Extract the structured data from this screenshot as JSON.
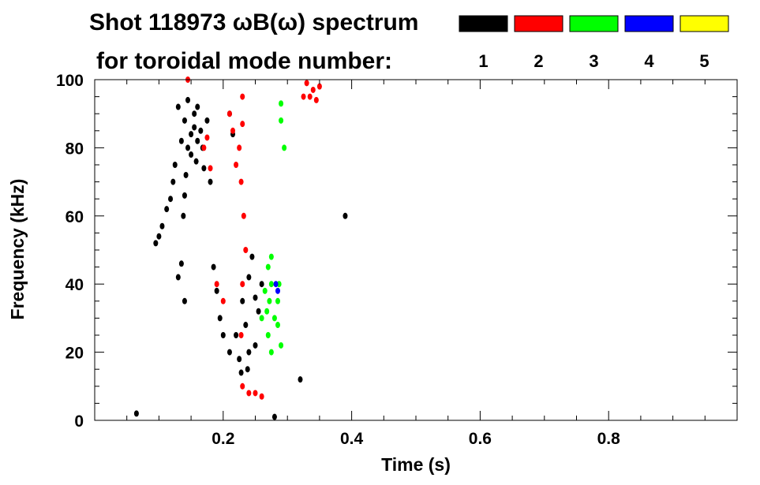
{
  "title": {
    "line1": "Shot 118973 ωB(ω) spectrum",
    "line2": "for toroidal mode number:"
  },
  "legend": [
    {
      "label": "1",
      "color": "#000000"
    },
    {
      "label": "2",
      "color": "#ff0000"
    },
    {
      "label": "3",
      "color": "#00ff00"
    },
    {
      "label": "4",
      "color": "#0000ff"
    },
    {
      "label": "5",
      "color": "#ffff00"
    }
  ],
  "chart_data": {
    "type": "scatter",
    "title": "Shot 118973 ωB(ω) spectrum",
    "xlabel": "Time (s)",
    "ylabel": "Frequency (kHz)",
    "xlim": [
      0.0,
      1.0
    ],
    "ylim": [
      0,
      100
    ],
    "x_ticks": [
      0.2,
      0.4,
      0.6,
      0.8
    ],
    "x_tick_labels": [
      "0.2",
      "0.4",
      "0.6",
      "0.8"
    ],
    "y_ticks": [
      0,
      20,
      40,
      60,
      80,
      100
    ],
    "y_tick_labels": [
      "0",
      "20",
      "40",
      "60",
      "80",
      "100"
    ],
    "grid": false,
    "legend_position": "top-right",
    "series": [
      {
        "name": "1",
        "color": "#000000",
        "points": [
          [
            0.155,
            86
          ],
          [
            0.15,
            84
          ],
          [
            0.16,
            82
          ],
          [
            0.145,
            80
          ],
          [
            0.155,
            90
          ],
          [
            0.165,
            85
          ],
          [
            0.14,
            88
          ],
          [
            0.15,
            78
          ],
          [
            0.16,
            92
          ],
          [
            0.135,
            82
          ],
          [
            0.145,
            94
          ],
          [
            0.158,
            76
          ],
          [
            0.168,
            80
          ],
          [
            0.13,
            92
          ],
          [
            0.125,
            75
          ],
          [
            0.122,
            70
          ],
          [
            0.118,
            65
          ],
          [
            0.112,
            62
          ],
          [
            0.105,
            57
          ],
          [
            0.1,
            54
          ],
          [
            0.095,
            52
          ],
          [
            0.175,
            88
          ],
          [
            0.17,
            74
          ],
          [
            0.142,
            72
          ],
          [
            0.14,
            66
          ],
          [
            0.138,
            60
          ],
          [
            0.18,
            70
          ],
          [
            0.185,
            45
          ],
          [
            0.19,
            38
          ],
          [
            0.195,
            30
          ],
          [
            0.2,
            25
          ],
          [
            0.21,
            20
          ],
          [
            0.22,
            25
          ],
          [
            0.225,
            18
          ],
          [
            0.23,
            35
          ],
          [
            0.235,
            28
          ],
          [
            0.24,
            42
          ],
          [
            0.24,
            20
          ],
          [
            0.245,
            48
          ],
          [
            0.25,
            36
          ],
          [
            0.25,
            22
          ],
          [
            0.255,
            32
          ],
          [
            0.26,
            40
          ],
          [
            0.238,
            15
          ],
          [
            0.228,
            14
          ],
          [
            0.13,
            42
          ],
          [
            0.135,
            46
          ],
          [
            0.14,
            35
          ],
          [
            0.065,
            2
          ],
          [
            0.28,
            1
          ],
          [
            0.32,
            12
          ],
          [
            0.39,
            60
          ],
          [
            0.21,
            90
          ],
          [
            0.215,
            84
          ]
        ]
      },
      {
        "name": "2",
        "color": "#ff0000",
        "points": [
          [
            0.145,
            100
          ],
          [
            0.175,
            83
          ],
          [
            0.17,
            80
          ],
          [
            0.18,
            74
          ],
          [
            0.23,
            95
          ],
          [
            0.23,
            87
          ],
          [
            0.225,
            80
          ],
          [
            0.228,
            70
          ],
          [
            0.232,
            60
          ],
          [
            0.235,
            50
          ],
          [
            0.23,
            40
          ],
          [
            0.21,
            90
          ],
          [
            0.215,
            85
          ],
          [
            0.22,
            75
          ],
          [
            0.228,
            25
          ],
          [
            0.23,
            10
          ],
          [
            0.24,
            8
          ],
          [
            0.25,
            8
          ],
          [
            0.26,
            7
          ],
          [
            0.33,
            99
          ],
          [
            0.335,
            95
          ],
          [
            0.34,
            97
          ],
          [
            0.345,
            94
          ],
          [
            0.35,
            98
          ],
          [
            0.325,
            95
          ],
          [
            0.2,
            35
          ],
          [
            0.19,
            40
          ]
        ]
      },
      {
        "name": "3",
        "color": "#00ff00",
        "points": [
          [
            0.27,
            45
          ],
          [
            0.275,
            40
          ],
          [
            0.272,
            35
          ],
          [
            0.28,
            30
          ],
          [
            0.27,
            25
          ],
          [
            0.265,
            38
          ],
          [
            0.285,
            28
          ],
          [
            0.285,
            35
          ],
          [
            0.275,
            20
          ],
          [
            0.29,
            22
          ],
          [
            0.268,
            32
          ],
          [
            0.26,
            30
          ],
          [
            0.275,
            48
          ],
          [
            0.287,
            40
          ],
          [
            0.29,
            93
          ],
          [
            0.29,
            88
          ],
          [
            0.295,
            80
          ]
        ]
      },
      {
        "name": "4",
        "color": "#0000ff",
        "points": [
          [
            0.282,
            40
          ],
          [
            0.285,
            38
          ]
        ]
      },
      {
        "name": "5",
        "color": "#ffff00",
        "points": []
      }
    ]
  }
}
